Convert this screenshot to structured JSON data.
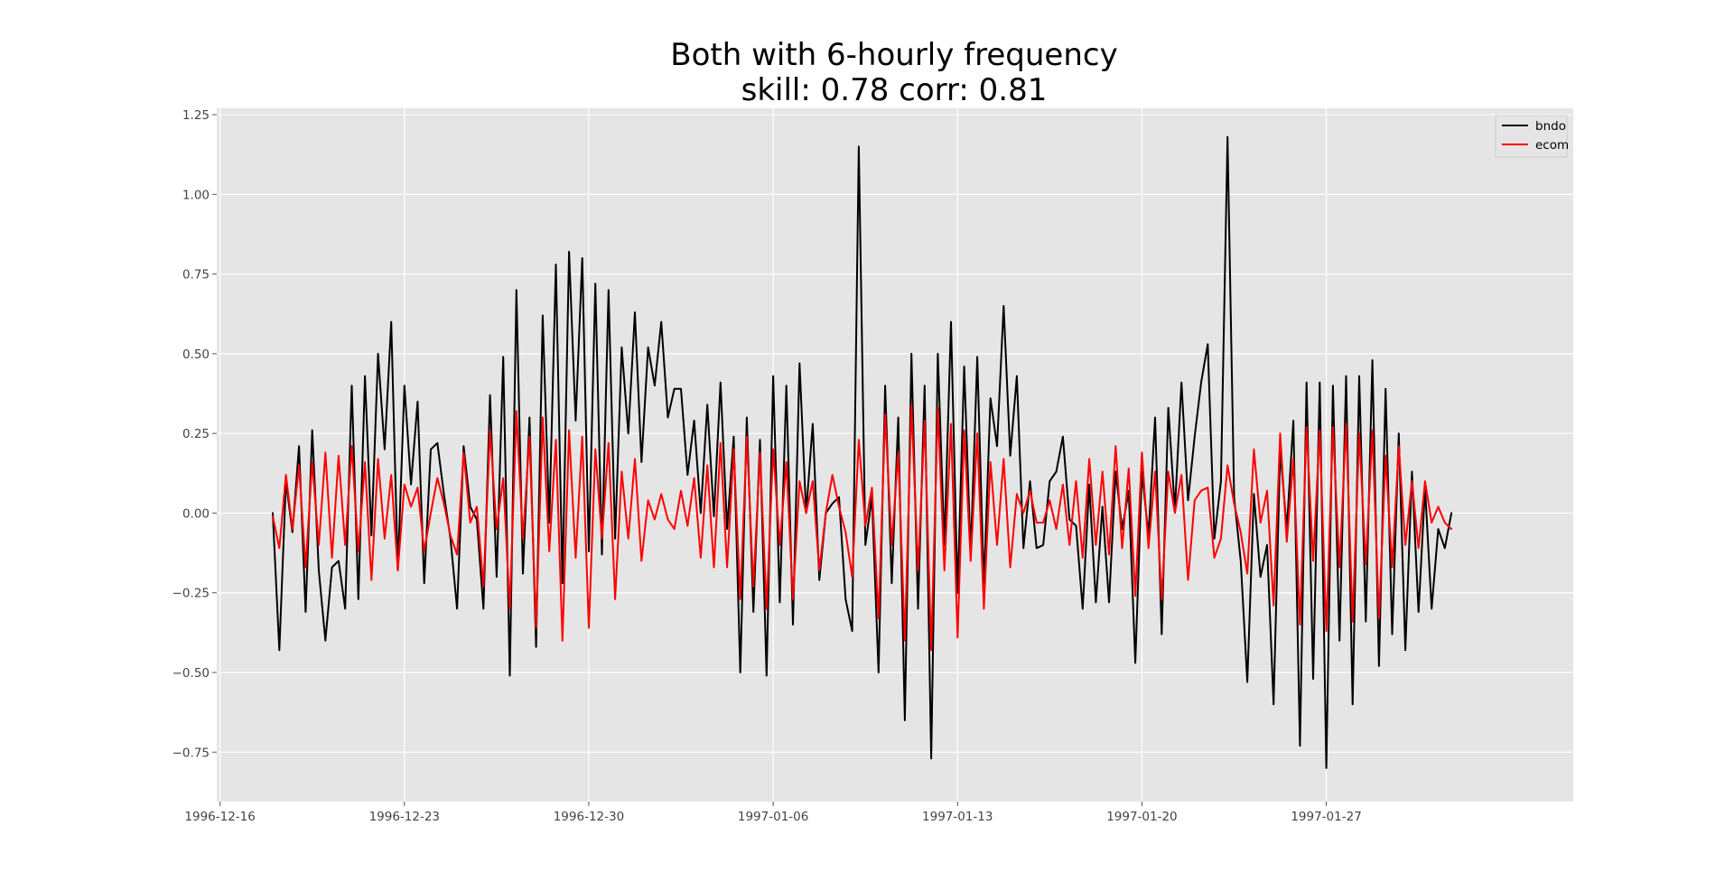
{
  "chart_data": {
    "type": "line",
    "title": "Both with 6-hourly frequency",
    "subtitle": "skill: 0.78 corr: 0.81",
    "xlabel": "",
    "ylabel": "",
    "x_tick_labels": [
      "1996-12-16",
      "1996-12-23",
      "1996-12-30",
      "1997-01-06",
      "1997-01-13",
      "1997-01-20",
      "1997-01-27"
    ],
    "y_tick_labels": [
      "1.25",
      "1.00",
      "0.75",
      "0.50",
      "0.25",
      "0.00",
      "−0.25",
      "−0.50",
      "−0.75"
    ],
    "y_ticks": [
      1.25,
      1.0,
      0.75,
      0.5,
      0.25,
      0.0,
      -0.25,
      -0.5,
      -0.75
    ],
    "xlim": [
      "1996-12-15T21:00",
      "1997-02-05T09:00"
    ],
    "ylim": [
      -0.905,
      1.27
    ],
    "x_start": "1996-12-18T00:00",
    "x_step_hours": 6,
    "grid": true,
    "legend_placement": "top-right",
    "series": [
      {
        "name": "bndo",
        "color": "#000000",
        "values": [
          0.0,
          -0.43,
          0.1,
          -0.06,
          0.21,
          -0.31,
          0.26,
          -0.18,
          -0.4,
          -0.17,
          -0.15,
          -0.3,
          0.4,
          -0.27,
          0.43,
          -0.07,
          0.5,
          0.2,
          0.6,
          -0.18,
          0.4,
          0.09,
          0.35,
          -0.22,
          0.2,
          0.22,
          0.06,
          -0.08,
          -0.3,
          0.21,
          0.02,
          -0.02,
          -0.3,
          0.37,
          -0.2,
          0.49,
          -0.51,
          0.7,
          -0.19,
          0.3,
          -0.42,
          0.62,
          -0.03,
          0.78,
          -0.22,
          0.82,
          0.29,
          0.8,
          -0.12,
          0.72,
          -0.13,
          0.7,
          -0.08,
          0.52,
          0.25,
          0.63,
          0.16,
          0.52,
          0.4,
          0.6,
          0.3,
          0.39,
          0.39,
          0.12,
          0.29,
          0.0,
          0.34,
          -0.01,
          0.41,
          -0.05,
          0.24,
          -0.5,
          0.3,
          -0.31,
          0.23,
          -0.51,
          0.43,
          -0.28,
          0.4,
          -0.35,
          0.47,
          0.0,
          0.28,
          -0.21,
          0.0,
          0.03,
          0.05,
          -0.27,
          -0.37,
          1.15,
          -0.1,
          0.05,
          -0.5,
          0.4,
          -0.22,
          0.3,
          -0.65,
          0.5,
          -0.3,
          0.4,
          -0.77,
          0.5,
          -0.1,
          0.6,
          -0.25,
          0.46,
          -0.13,
          0.49,
          -0.23,
          0.36,
          0.21,
          0.65,
          0.18,
          0.43,
          -0.11,
          0.1,
          -0.11,
          -0.1,
          0.1,
          0.13,
          0.24,
          -0.02,
          -0.04,
          -0.3,
          0.09,
          -0.28,
          0.02,
          -0.28,
          0.13,
          -0.05,
          0.07,
          -0.47,
          0.13,
          -0.07,
          0.3,
          -0.38,
          0.33,
          0.01,
          0.41,
          0.04,
          0.24,
          0.41,
          0.53,
          -0.08,
          0.1,
          1.18,
          0.05,
          -0.15,
          -0.53,
          0.06,
          -0.2,
          -0.1,
          -0.6,
          0.2,
          -0.05,
          0.29,
          -0.73,
          0.41,
          -0.52,
          0.41,
          -0.8,
          0.4,
          -0.4,
          0.43,
          -0.6,
          0.43,
          -0.34,
          0.48,
          -0.48,
          0.39,
          -0.38,
          0.25,
          -0.43,
          0.13,
          -0.31,
          0.08,
          -0.3,
          -0.05,
          -0.11,
          0.0
        ]
      },
      {
        "name": "ecom",
        "color": "#ff0000",
        "values": [
          -0.01,
          -0.11,
          0.12,
          -0.05,
          0.15,
          -0.17,
          0.16,
          -0.1,
          0.19,
          -0.14,
          0.18,
          -0.1,
          0.21,
          -0.12,
          0.16,
          -0.21,
          0.17,
          -0.08,
          0.12,
          -0.18,
          0.09,
          0.02,
          0.08,
          -0.12,
          0.0,
          0.11,
          0.03,
          -0.07,
          -0.13,
          0.19,
          -0.03,
          0.02,
          -0.23,
          0.26,
          -0.05,
          0.11,
          -0.3,
          0.32,
          -0.08,
          0.24,
          -0.36,
          0.3,
          -0.12,
          0.23,
          -0.4,
          0.26,
          -0.14,
          0.24,
          -0.36,
          0.2,
          -0.08,
          0.22,
          -0.27,
          0.13,
          -0.08,
          0.17,
          -0.15,
          0.04,
          -0.02,
          0.06,
          -0.02,
          -0.05,
          0.07,
          -0.04,
          0.11,
          -0.14,
          0.15,
          -0.17,
          0.22,
          -0.17,
          0.2,
          -0.27,
          0.24,
          -0.23,
          0.19,
          -0.3,
          0.2,
          -0.1,
          0.16,
          -0.27,
          0.1,
          0.0,
          0.1,
          -0.18,
          0.0,
          0.12,
          0.02,
          -0.06,
          -0.2,
          0.23,
          -0.04,
          0.08,
          -0.33,
          0.31,
          -0.1,
          0.19,
          -0.4,
          0.34,
          -0.18,
          0.29,
          -0.43,
          0.33,
          -0.18,
          0.28,
          -0.39,
          0.26,
          -0.15,
          0.25,
          -0.3,
          0.16,
          -0.1,
          0.17,
          -0.17,
          0.06,
          0.0,
          0.07,
          -0.03,
          -0.03,
          0.04,
          -0.05,
          0.09,
          -0.1,
          0.1,
          -0.14,
          0.17,
          -0.1,
          0.13,
          -0.13,
          0.21,
          -0.11,
          0.14,
          -0.26,
          0.19,
          -0.11,
          0.13,
          -0.27,
          0.13,
          0.0,
          0.12,
          -0.21,
          0.04,
          0.07,
          0.08,
          -0.14,
          -0.08,
          0.15,
          0.03,
          -0.06,
          -0.19,
          0.2,
          -0.03,
          0.07,
          -0.29,
          0.25,
          -0.09,
          0.17,
          -0.35,
          0.27,
          -0.15,
          0.26,
          -0.37,
          0.27,
          -0.17,
          0.28,
          -0.34,
          0.25,
          -0.16,
          0.26,
          -0.33,
          0.18,
          -0.17,
          0.21,
          -0.1,
          0.1,
          -0.11,
          0.1,
          -0.03,
          0.02,
          -0.03,
          -0.05
        ]
      }
    ]
  }
}
